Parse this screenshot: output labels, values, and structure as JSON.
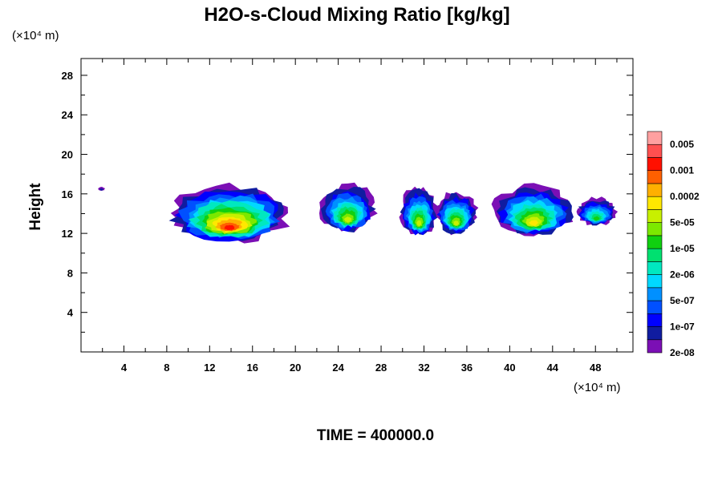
{
  "chart_data": {
    "type": "heatmap",
    "title": "H2O-s-Cloud Mixing Ratio [kg/kg]",
    "ylabel": "Height",
    "xlabel": "",
    "x_unit": "(×10⁴ m)",
    "y_unit": "(×10⁴ m)",
    "xlim": [
      0,
      51.5
    ],
    "ylim": [
      0,
      29.7
    ],
    "x_ticks": [
      4,
      8,
      12,
      16,
      20,
      24,
      28,
      32,
      36,
      40,
      44,
      48
    ],
    "y_ticks": [
      4,
      8,
      12,
      16,
      20,
      24,
      28
    ],
    "grid": false,
    "footer": "TIME = 400000.0",
    "colorbar": {
      "placement": "right",
      "labels": [
        "0.005",
        "0.001",
        "0.0002",
        "5e-05",
        "1e-05",
        "2e-06",
        "5e-07",
        "1e-07",
        "2e-08"
      ],
      "colors": [
        "#7b0fb5",
        "#101ca0",
        "#0000ff",
        "#0050ff",
        "#0090ff",
        "#00d8ff",
        "#00e8c0",
        "#00e070",
        "#10d010",
        "#7ce800",
        "#c8f000",
        "#ffe800",
        "#ffb000",
        "#ff6000",
        "#ff1000",
        "#ff5050",
        "#ffa0a0"
      ]
    },
    "cloud_regions": [
      {
        "name": "main-cloud",
        "x_range": [
          8.2,
          19.5
        ],
        "y_range": [
          11.2,
          16.9
        ],
        "peak_level": 14
      },
      {
        "name": "small-cloud-left",
        "x_range": [
          1.6,
          2.2
        ],
        "y_range": [
          16.3,
          16.7
        ],
        "peak_level": 1
      },
      {
        "name": "cloud-24",
        "x_range": [
          22.3,
          27.5
        ],
        "y_range": [
          12.2,
          17.0
        ],
        "peak_level": 10
      },
      {
        "name": "cloud-30",
        "x_range": [
          29.8,
          33.3
        ],
        "y_range": [
          11.8,
          16.7
        ],
        "peak_level": 10
      },
      {
        "name": "cloud-35",
        "x_range": [
          33.0,
          37.0
        ],
        "y_range": [
          12.0,
          16.2
        ],
        "peak_level": 10
      },
      {
        "name": "cloud-42",
        "x_range": [
          38.5,
          46.0
        ],
        "y_range": [
          11.8,
          16.9
        ],
        "peak_level": 11
      },
      {
        "name": "cloud-48",
        "x_range": [
          46.2,
          50.0
        ],
        "y_range": [
          12.8,
          15.6
        ],
        "peak_level": 8
      }
    ]
  }
}
